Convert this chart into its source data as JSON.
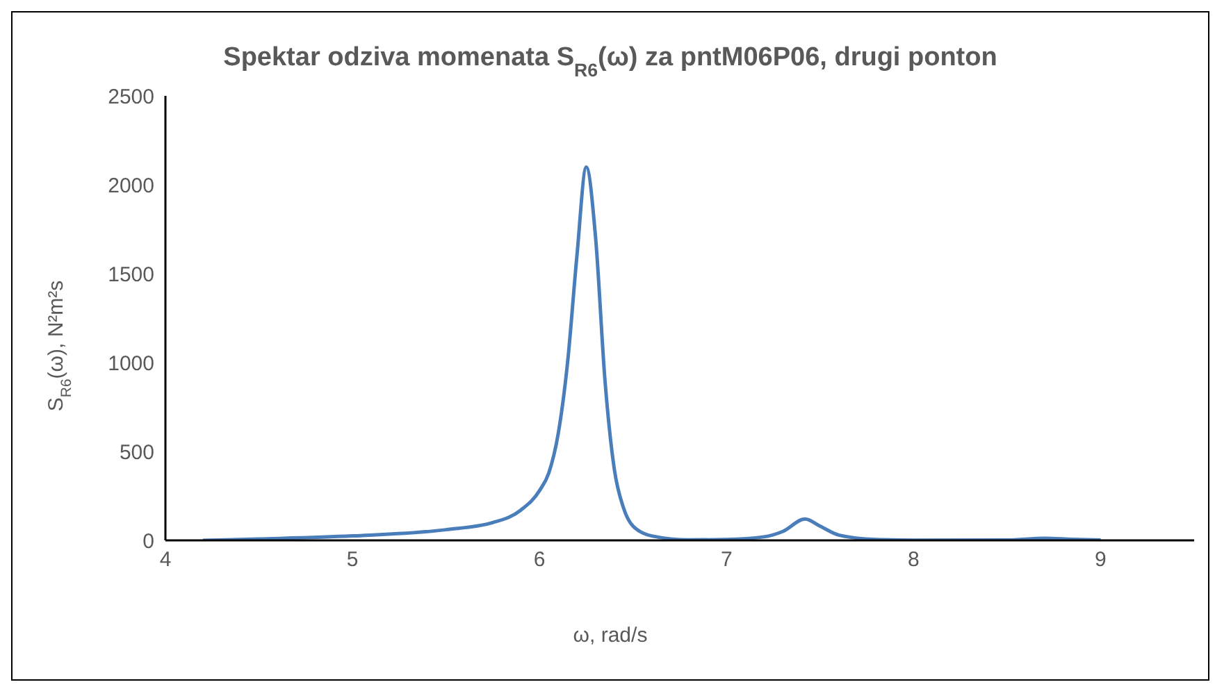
{
  "chart_data": {
    "type": "line",
    "title": "Spektar odziva momenata S$_{R6}$(ω) za pntM06P06, drugi ponton",
    "xlabel": "ω, rad/s",
    "ylabel": "S$_{R6}$(ω), N²m²s",
    "x": [
      4.2,
      4.5,
      5,
      5.5,
      5.75,
      5.9,
      6,
      6.05,
      6.1,
      6.15,
      6.2,
      6.25,
      6.3,
      6.35,
      6.4,
      6.45,
      6.5,
      6.6,
      6.8,
      7,
      7.2,
      7.3,
      7.42,
      7.5,
      7.6,
      7.8,
      8,
      8.5,
      8.7,
      8.85,
      9
    ],
    "series": [
      {
        "color": "#4a7ebb",
        "values": [
          0,
          8,
          25,
          60,
          100,
          170,
          280,
          380,
          600,
          1000,
          1600,
          2100,
          1700,
          900,
          400,
          180,
          80,
          25,
          3,
          5,
          20,
          50,
          120,
          80,
          30,
          5,
          1,
          2,
          12,
          6,
          2
        ]
      }
    ],
    "xlim": [
      4,
      9.5
    ],
    "xticks": [
      4,
      5,
      6,
      7,
      8,
      9
    ],
    "ylim": [
      0,
      2500
    ],
    "yticks": [
      0,
      500,
      1000,
      1500,
      2000,
      2500
    ],
    "grid": false,
    "legend": false,
    "marker": "none",
    "line_style": "solid"
  }
}
